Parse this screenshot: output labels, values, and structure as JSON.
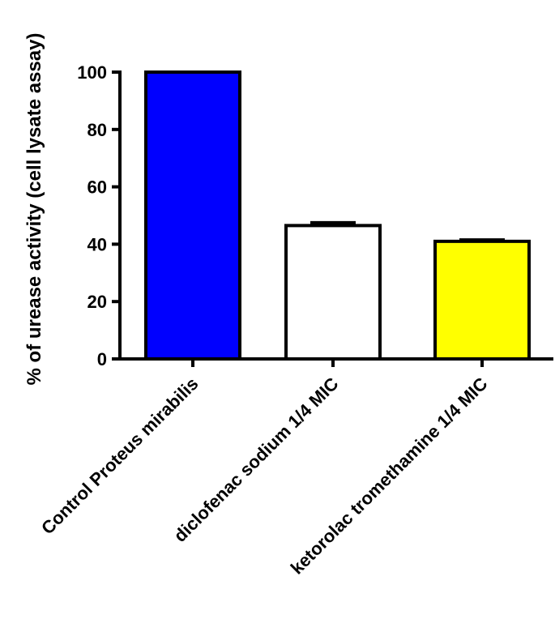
{
  "chart_data": {
    "type": "bar",
    "title": "",
    "xlabel": "",
    "ylabel": "% of urease activity (cell lysate assay)",
    "ylim": [
      0,
      100
    ],
    "yticks": [
      0,
      20,
      40,
      60,
      80,
      100
    ],
    "grid": false,
    "categories": [
      "Control Proteus mirabilis",
      "diclofenac sodium 1/4 MIC",
      "ketorolac tromethamine 1/4 MIC"
    ],
    "values": [
      100,
      46.5,
      41
    ],
    "errors": [
      0,
      1,
      0.5
    ],
    "colors": [
      "#0000FF",
      "#FFFFFF",
      "#FFFF00"
    ],
    "edge_color": "#000000"
  }
}
